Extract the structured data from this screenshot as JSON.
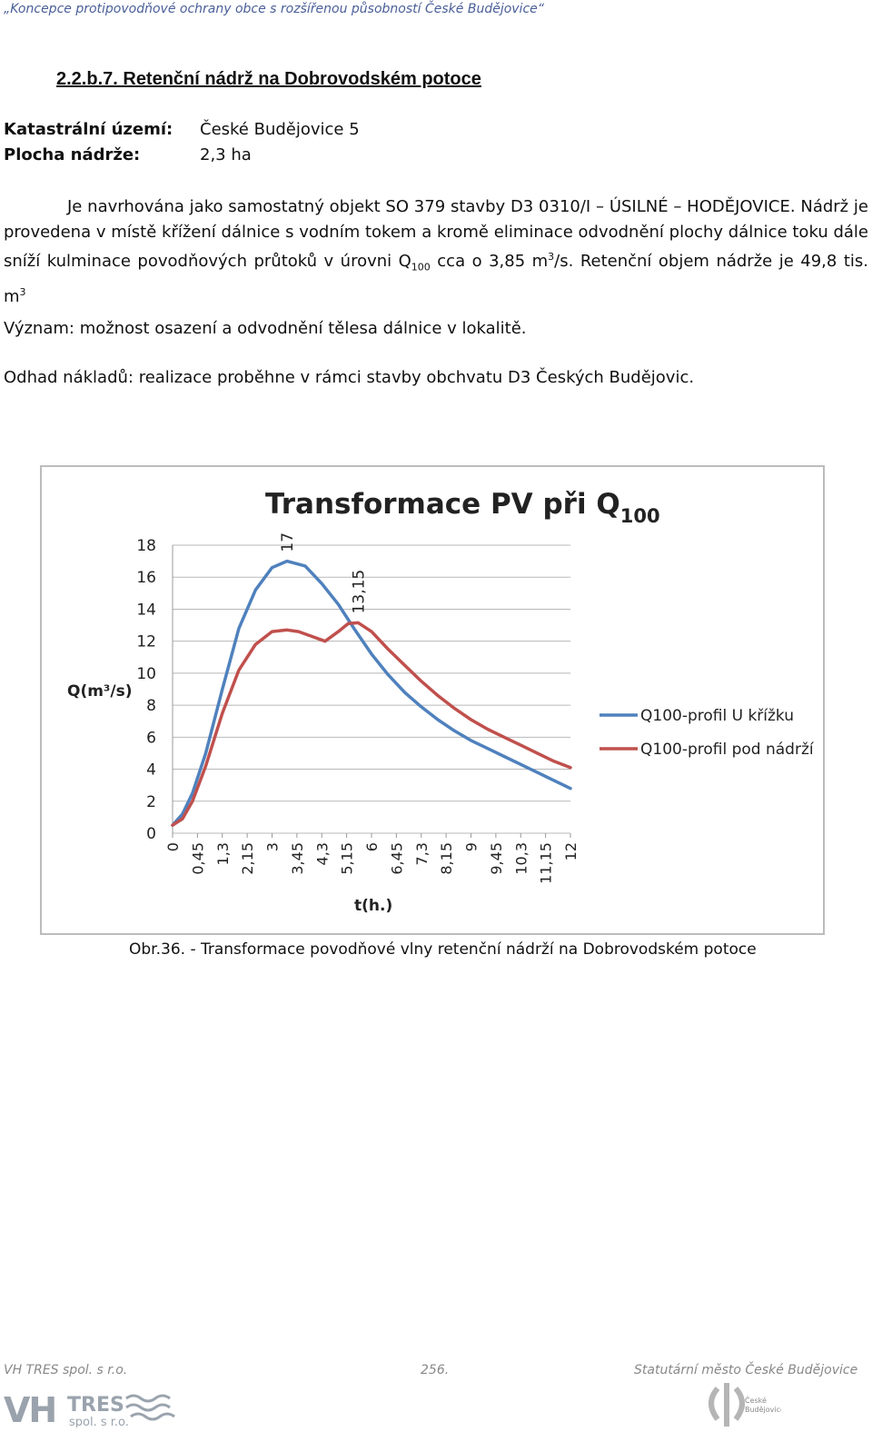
{
  "header": {
    "running_title": "„Koncepce protipovodňové ochrany obce s rozšířenou působností České Budějovice“"
  },
  "section": {
    "heading": "2.2.b.7. Retenční nádrž na Dobrovodském potoce"
  },
  "info": {
    "rows": [
      {
        "label": "Katastrální území:",
        "value": "České Budějovice 5"
      },
      {
        "label": "Plocha nádrže:",
        "value": "2,3 ha"
      }
    ]
  },
  "body": {
    "p1_a": "Je navrhována jako samostatný objekt SO 379 stavby D3 0310/I – ÚSILNÉ – HODĚJOVICE. Nádrž je provedena v místě křížení dálnice s vodním tokem a kromě eliminace odvodnění plochy dálnice toku dále sníží kulminace povodňových průtoků v úrovni Q",
    "p1_sub": "100",
    "p1_b": " cca o 3,85 m",
    "p1_sup1": "3",
    "p1_c": "/s. Retenční objem nádrže je 49,8 tis. m",
    "p1_sup2": "3",
    "vyznam": "Význam: možnost osazení a odvodnění tělesa dálnice v lokalitě.",
    "naklady": "Odhad nákladů: realizace proběhne v rámci stavby obchvatu D3 Českých Budějovic."
  },
  "chart_data": {
    "type": "line",
    "title": "Transformace PV při Q",
    "title_sub": "100",
    "xlabel": "t(h.)",
    "ylabel": "Q(m³/s)",
    "ylim": [
      0,
      18
    ],
    "yticks": [
      "0",
      "2",
      "4",
      "6",
      "8",
      "10",
      "12",
      "14",
      "16",
      "18"
    ],
    "xticks": [
      "0",
      "0,45",
      "1,3",
      "2,15",
      "3",
      "3,45",
      "4,3",
      "5,15",
      "6",
      "6,45",
      "7,3",
      "8,15",
      "9",
      "9,45",
      "10,3",
      "11,15",
      "12"
    ],
    "x_range": [
      0,
      12
    ],
    "legend_position": "right",
    "series": [
      {
        "name": "Q100-profil U křížku",
        "color": "#4f81bd",
        "points": [
          [
            0,
            0.5
          ],
          [
            0.3,
            1.2
          ],
          [
            0.6,
            2.5
          ],
          [
            1,
            5
          ],
          [
            1.5,
            9
          ],
          [
            2,
            12.8
          ],
          [
            2.5,
            15.2
          ],
          [
            3,
            16.6
          ],
          [
            3.45,
            17
          ],
          [
            4,
            16.7
          ],
          [
            4.5,
            15.6
          ],
          [
            5,
            14.3
          ],
          [
            5.5,
            12.7
          ],
          [
            6,
            11.2
          ],
          [
            6.5,
            9.9
          ],
          [
            7,
            8.8
          ],
          [
            7.5,
            7.9
          ],
          [
            8,
            7.1
          ],
          [
            8.5,
            6.4
          ],
          [
            9,
            5.8
          ],
          [
            9.5,
            5.3
          ],
          [
            10,
            4.8
          ],
          [
            10.5,
            4.3
          ],
          [
            11,
            3.8
          ],
          [
            11.5,
            3.3
          ],
          [
            12,
            2.8
          ]
        ]
      },
      {
        "name": "Q100-profil pod nádrží",
        "color": "#c0504d",
        "points": [
          [
            0,
            0.5
          ],
          [
            0.3,
            0.9
          ],
          [
            0.6,
            2
          ],
          [
            1,
            4.2
          ],
          [
            1.5,
            7.5
          ],
          [
            2,
            10.2
          ],
          [
            2.5,
            11.8
          ],
          [
            3,
            12.6
          ],
          [
            3.45,
            12.7
          ],
          [
            3.8,
            12.6
          ],
          [
            4.2,
            12.3
          ],
          [
            4.6,
            12
          ],
          [
            5,
            12.6
          ],
          [
            5.3,
            13.1
          ],
          [
            5.6,
            13.15
          ],
          [
            6,
            12.6
          ],
          [
            6.5,
            11.5
          ],
          [
            7,
            10.5
          ],
          [
            7.5,
            9.5
          ],
          [
            8,
            8.6
          ],
          [
            8.5,
            7.8
          ],
          [
            9,
            7.1
          ],
          [
            9.5,
            6.5
          ],
          [
            10,
            6
          ],
          [
            10.5,
            5.5
          ],
          [
            11,
            5
          ],
          [
            11.5,
            4.5
          ],
          [
            12,
            4.1
          ]
        ]
      }
    ],
    "annotations": [
      {
        "label": "17",
        "series": 0,
        "x": 3.45,
        "y": 17
      },
      {
        "label": "13,15",
        "series": 1,
        "x": 5.6,
        "y": 13.15
      }
    ]
  },
  "caption": "Obr.36. - Transformace povodňové vlny retenční nádrží na Dobrovodském potoce",
  "footer": {
    "left": "VH TRES spol. s r.o.",
    "center": "256.",
    "right": "Statutární město České Budějovice",
    "logo_text_1": "VHTRES",
    "logo_text_2": "spol. s r.o.",
    "crest_text": "České Budějovice"
  }
}
